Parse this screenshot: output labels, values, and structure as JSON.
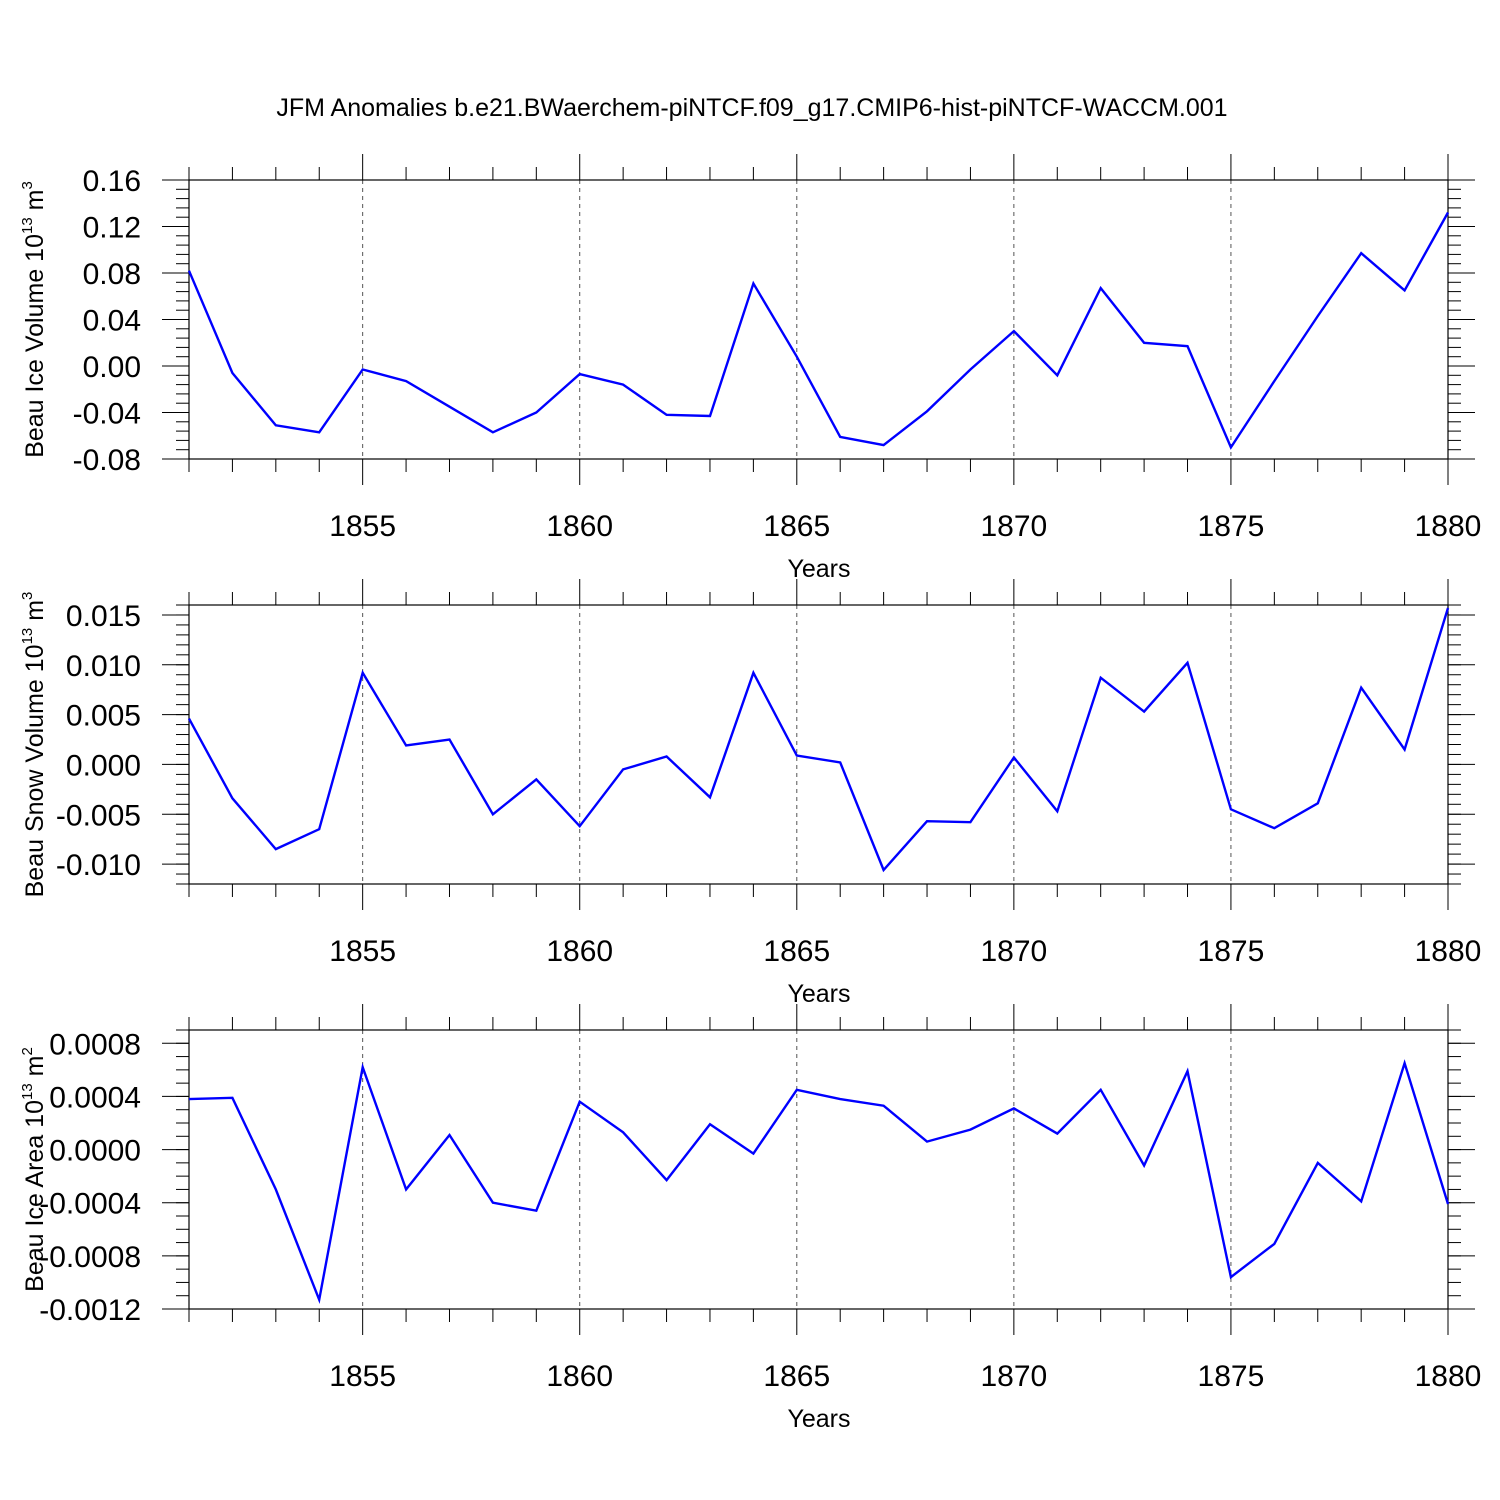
{
  "title": "JFM Anomalies b.e21.BWaerchem-piNTCF.f09_g17.CMIP6-hist-piNTCF-WACCM.001",
  "chart_data": [
    {
      "type": "line",
      "id": "ice-volume",
      "ylabel": {
        "main": "Beau Ice Volume 10",
        "exp": "13",
        "unit": " m",
        "unit_exp": "3"
      },
      "xlabel": "Years",
      "xlim": [
        1851,
        1880
      ],
      "ylim": [
        -0.08,
        0.16
      ],
      "x_major_ticks": [
        1855,
        1860,
        1865,
        1870,
        1875,
        1880
      ],
      "x_tick_labels": [
        "1855",
        "1860",
        "1865",
        "1870",
        "1875",
        "1880"
      ],
      "y_ticks": [
        -0.08,
        -0.04,
        0.0,
        0.04,
        0.08,
        0.12,
        0.16
      ],
      "y_tick_labels": [
        "-0.08",
        "-0.04",
        "0.00",
        "0.04",
        "0.08",
        "0.12",
        "0.16"
      ],
      "y_minor_step": 0.008,
      "grid": "vertical dashed at major x ticks",
      "series": [
        {
          "name": "Beau Ice Volume",
          "color": "#0000ff",
          "x": [
            1851,
            1852,
            1853,
            1854,
            1855,
            1856,
            1857,
            1858,
            1859,
            1860,
            1861,
            1862,
            1863,
            1864,
            1865,
            1866,
            1867,
            1868,
            1869,
            1870,
            1871,
            1872,
            1873,
            1874,
            1875,
            1876,
            1877,
            1878,
            1879,
            1880
          ],
          "values": [
            0.082,
            -0.006,
            -0.051,
            -0.057,
            -0.003,
            -0.013,
            -0.035,
            -0.057,
            -0.04,
            -0.007,
            -0.016,
            -0.042,
            -0.043,
            0.071,
            0.008,
            -0.061,
            -0.068,
            -0.039,
            -0.003,
            0.03,
            -0.008,
            0.067,
            0.02,
            0.017,
            -0.07,
            -0.013,
            0.043,
            0.097,
            0.065,
            0.132
          ]
        }
      ]
    },
    {
      "type": "line",
      "id": "snow-volume",
      "ylabel": {
        "main": "Beau Snow Volume 10",
        "exp": "13",
        "unit": " m",
        "unit_exp": "3"
      },
      "xlabel": "Years",
      "xlim": [
        1851,
        1880
      ],
      "ylim": [
        -0.012,
        0.016
      ],
      "x_major_ticks": [
        1855,
        1860,
        1865,
        1870,
        1875,
        1880
      ],
      "x_tick_labels": [
        "1855",
        "1860",
        "1865",
        "1870",
        "1875",
        "1880"
      ],
      "y_ticks": [
        -0.01,
        -0.005,
        0.0,
        0.005,
        0.01,
        0.015
      ],
      "y_tick_labels": [
        "-0.010",
        "-0.005",
        "0.000",
        "0.005",
        "0.010",
        "0.015"
      ],
      "y_minor_step": 0.001,
      "grid": "vertical dashed at major x ticks",
      "series": [
        {
          "name": "Beau Snow Volume",
          "color": "#0000ff",
          "x": [
            1851,
            1852,
            1853,
            1854,
            1855,
            1856,
            1857,
            1858,
            1859,
            1860,
            1861,
            1862,
            1863,
            1864,
            1865,
            1866,
            1867,
            1868,
            1869,
            1870,
            1871,
            1872,
            1873,
            1874,
            1875,
            1876,
            1877,
            1878,
            1879,
            1880
          ],
          "values": [
            0.0046,
            -0.0034,
            -0.0085,
            -0.0065,
            0.0092,
            0.0019,
            0.0025,
            -0.005,
            -0.0015,
            -0.0062,
            -0.0005,
            0.0008,
            -0.0033,
            0.0092,
            0.0009,
            0.0002,
            -0.0106,
            -0.0057,
            -0.0058,
            0.0007,
            -0.0047,
            0.0087,
            0.0053,
            0.0102,
            -0.0045,
            -0.0064,
            -0.0039,
            0.0077,
            0.0015,
            0.0157
          ]
        }
      ]
    },
    {
      "type": "line",
      "id": "ice-area",
      "ylabel": {
        "main": "Beau Ice Area 10",
        "exp": "13",
        "unit": " m",
        "unit_exp": "2"
      },
      "xlabel": "Years",
      "xlim": [
        1851,
        1880
      ],
      "ylim": [
        -0.0012,
        0.0009
      ],
      "x_major_ticks": [
        1855,
        1860,
        1865,
        1870,
        1875,
        1880
      ],
      "x_tick_labels": [
        "1855",
        "1860",
        "1865",
        "1870",
        "1875",
        "1880"
      ],
      "y_ticks": [
        -0.0012,
        -0.0008,
        -0.0004,
        0.0,
        0.0004,
        0.0008
      ],
      "y_tick_labels": [
        "-0.0012",
        "-0.0008",
        "-0.0004",
        "0.0000",
        "0.0004",
        "0.0008"
      ],
      "y_minor_step": 0.0001,
      "grid": "vertical dashed at major x ticks",
      "series": [
        {
          "name": "Beau Ice Area",
          "color": "#0000ff",
          "x": [
            1851,
            1852,
            1853,
            1854,
            1855,
            1856,
            1857,
            1858,
            1859,
            1860,
            1861,
            1862,
            1863,
            1864,
            1865,
            1866,
            1867,
            1868,
            1869,
            1870,
            1871,
            1872,
            1873,
            1874,
            1875,
            1876,
            1877,
            1878,
            1879,
            1880
          ],
          "values": [
            0.00038,
            0.00039,
            -0.0003,
            -0.00113,
            0.00062,
            -0.0003,
            0.00011,
            -0.0004,
            -0.00046,
            0.00036,
            0.00013,
            -0.00023,
            0.00019,
            -3e-05,
            0.00045,
            0.00038,
            0.00033,
            6e-05,
            0.00015,
            0.00031,
            0.00012,
            0.00045,
            -0.00012,
            0.00059,
            -0.00096,
            -0.00071,
            -0.0001,
            -0.00039,
            0.00065,
            -0.00041
          ]
        }
      ]
    }
  ]
}
